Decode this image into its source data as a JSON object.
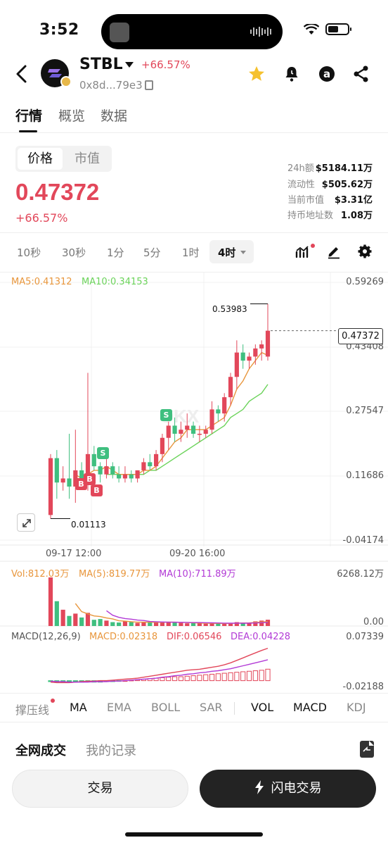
{
  "status_bar": {
    "time": "3:52"
  },
  "header": {
    "symbol": "STBL",
    "change": "+66.57%",
    "address": "0x8d...79e3"
  },
  "main_tabs": [
    {
      "label": "行情",
      "active": true
    },
    {
      "label": "概览",
      "active": false
    },
    {
      "label": "数据",
      "active": false
    }
  ],
  "price_panel": {
    "segments": [
      {
        "label": "价格",
        "active": true
      },
      {
        "label": "市值",
        "active": false
      }
    ],
    "price": "0.47372",
    "change": "+66.57%",
    "stats": [
      {
        "label": "24h额",
        "value": "$5184.11万"
      },
      {
        "label": "流动性",
        "value": "$505.62万"
      },
      {
        "label": "当前市值",
        "value": "$3.31亿"
      },
      {
        "label": "持币地址数",
        "value": "1.08万"
      }
    ]
  },
  "intervals": [
    "10秒",
    "30秒",
    "1分",
    "5分",
    "1时"
  ],
  "interval_selected": "4时",
  "chart_legend": {
    "ma5": "MA5:0.41312",
    "ma10": "MA10:0.34153"
  },
  "chart_axis": {
    "y_ticks": [
      "0.59269",
      "0.43408",
      "0.27547",
      "0.11686",
      "-0.04174"
    ],
    "x_ticks": [
      "09-17 12:00",
      "09-20 16:00"
    ],
    "current_price_tag": "0.47372",
    "high_label": "0.53983",
    "low_label": "0.01113"
  },
  "signals": [
    "S",
    "S",
    "B",
    "B",
    "B"
  ],
  "volume_panel": {
    "vol": "Vol:812.03万",
    "ma5": "MA(5):819.77万",
    "ma10": "MA(10):711.89万",
    "y_top": "6268.12万",
    "y_bottom": "0.00"
  },
  "macd_panel": {
    "title": "MACD(12,26,9)",
    "macd": "MACD:0.02318",
    "dif": "DIF:0.06546",
    "dea": "DEA:0.04228",
    "y_top": "0.07339",
    "y_bottom": "-0.02188"
  },
  "indicator_tabs": [
    "撑压线",
    "MA",
    "EMA",
    "BOLL",
    "SAR",
    "VOL",
    "MACD",
    "KDJ"
  ],
  "trade_tabs": [
    {
      "label": "全网成交",
      "active": true
    },
    {
      "label": "我的记录",
      "active": false
    }
  ],
  "buttons": {
    "trade": "交易",
    "flash_trade": "闪电交易"
  },
  "colors": {
    "up": "#e2475a",
    "down": "#3fbf7f",
    "ma5": "#e8963c",
    "ma10": "#6bd35a"
  },
  "chart_data": {
    "type": "candlestick",
    "interval": "4时",
    "ylim": [
      -0.04174,
      0.59269
    ],
    "y_ticks": [
      0.59269,
      0.43408,
      0.27547,
      0.11686,
      -0.04174
    ],
    "x_ticks": [
      "09-17 12:00",
      "09-20 16:00"
    ],
    "high": 0.53983,
    "low": 0.01113,
    "last": 0.47372,
    "candles": [
      {
        "o": 0.02,
        "h": 0.17,
        "l": 0.011,
        "c": 0.16
      },
      {
        "o": 0.16,
        "h": 0.18,
        "l": 0.06,
        "c": 0.1
      },
      {
        "o": 0.1,
        "h": 0.14,
        "l": 0.08,
        "c": 0.11
      },
      {
        "o": 0.11,
        "h": 0.22,
        "l": 0.06,
        "c": 0.09
      },
      {
        "o": 0.09,
        "h": 0.23,
        "l": 0.05,
        "c": 0.13
      },
      {
        "o": 0.13,
        "h": 0.15,
        "l": 0.1,
        "c": 0.11
      },
      {
        "o": 0.11,
        "h": 0.37,
        "l": 0.08,
        "c": 0.17
      },
      {
        "o": 0.17,
        "h": 0.19,
        "l": 0.13,
        "c": 0.14
      },
      {
        "o": 0.14,
        "h": 0.15,
        "l": 0.1,
        "c": 0.12
      },
      {
        "o": 0.12,
        "h": 0.16,
        "l": 0.11,
        "c": 0.14
      },
      {
        "o": 0.14,
        "h": 0.15,
        "l": 0.11,
        "c": 0.12
      },
      {
        "o": 0.12,
        "h": 0.14,
        "l": 0.1,
        "c": 0.11
      },
      {
        "o": 0.11,
        "h": 0.14,
        "l": 0.1,
        "c": 0.12
      },
      {
        "o": 0.12,
        "h": 0.13,
        "l": 0.1,
        "c": 0.11
      },
      {
        "o": 0.11,
        "h": 0.13,
        "l": 0.1,
        "c": 0.13
      },
      {
        "o": 0.13,
        "h": 0.16,
        "l": 0.12,
        "c": 0.15
      },
      {
        "o": 0.15,
        "h": 0.17,
        "l": 0.13,
        "c": 0.14
      },
      {
        "o": 0.14,
        "h": 0.18,
        "l": 0.13,
        "c": 0.17
      },
      {
        "o": 0.17,
        "h": 0.22,
        "l": 0.15,
        "c": 0.21
      },
      {
        "o": 0.21,
        "h": 0.25,
        "l": 0.18,
        "c": 0.24
      },
      {
        "o": 0.24,
        "h": 0.26,
        "l": 0.2,
        "c": 0.22
      },
      {
        "o": 0.22,
        "h": 0.25,
        "l": 0.2,
        "c": 0.23
      },
      {
        "o": 0.23,
        "h": 0.27,
        "l": 0.21,
        "c": 0.24
      },
      {
        "o": 0.24,
        "h": 0.25,
        "l": 0.21,
        "c": 0.22
      },
      {
        "o": 0.22,
        "h": 0.24,
        "l": 0.2,
        "c": 0.22
      },
      {
        "o": 0.22,
        "h": 0.24,
        "l": 0.21,
        "c": 0.23
      },
      {
        "o": 0.23,
        "h": 0.3,
        "l": 0.22,
        "c": 0.28
      },
      {
        "o": 0.28,
        "h": 0.29,
        "l": 0.25,
        "c": 0.27
      },
      {
        "o": 0.27,
        "h": 0.32,
        "l": 0.25,
        "c": 0.31
      },
      {
        "o": 0.31,
        "h": 0.37,
        "l": 0.29,
        "c": 0.36
      },
      {
        "o": 0.36,
        "h": 0.45,
        "l": 0.33,
        "c": 0.42
      },
      {
        "o": 0.42,
        "h": 0.44,
        "l": 0.38,
        "c": 0.4
      },
      {
        "o": 0.4,
        "h": 0.42,
        "l": 0.38,
        "c": 0.41
      },
      {
        "o": 0.41,
        "h": 0.44,
        "l": 0.39,
        "c": 0.43
      },
      {
        "o": 0.43,
        "h": 0.45,
        "l": 0.4,
        "c": 0.44
      },
      {
        "o": 0.41,
        "h": 0.53983,
        "l": 0.4,
        "c": 0.47372
      }
    ],
    "ma5": [
      null,
      null,
      null,
      null,
      0.12,
      0.11,
      0.12,
      0.13,
      0.13,
      0.14,
      0.13,
      0.12,
      0.12,
      0.12,
      0.12,
      0.13,
      0.13,
      0.14,
      0.16,
      0.18,
      0.2,
      0.21,
      0.23,
      0.23,
      0.23,
      0.23,
      0.24,
      0.25,
      0.26,
      0.29,
      0.33,
      0.35,
      0.38,
      0.4,
      0.42,
      0.41312
    ],
    "ma10": [
      null,
      null,
      null,
      null,
      null,
      null,
      null,
      null,
      null,
      0.12,
      0.12,
      0.12,
      0.12,
      0.12,
      0.12,
      0.12,
      0.13,
      0.13,
      0.14,
      0.15,
      0.16,
      0.17,
      0.18,
      0.19,
      0.2,
      0.21,
      0.22,
      0.23,
      0.24,
      0.26,
      0.27,
      0.28,
      0.3,
      0.31,
      0.32,
      0.34153
    ],
    "volume": [
      6268,
      3200,
      2100,
      1300,
      1600,
      1100,
      1700,
      800,
      900,
      700,
      500,
      450,
      600,
      500,
      400,
      500,
      450,
      500,
      550,
      500,
      450,
      400,
      350,
      380,
      350,
      300,
      350,
      300,
      320,
      400,
      500,
      420,
      350,
      600,
      700,
      812
    ],
    "macd_hist": [
      -0.002,
      -0.003,
      -0.004,
      -0.004,
      -0.003,
      -0.003,
      -0.002,
      -0.003,
      -0.003,
      -0.002,
      -0.002,
      -0.001,
      0.0,
      0.001,
      0.002,
      0.003,
      0.004,
      0.005,
      0.006,
      0.007,
      0.008,
      0.008,
      0.009,
      0.01,
      0.011,
      0.012,
      0.013,
      0.014,
      0.015,
      0.016,
      0.017,
      0.018,
      0.019,
      0.02,
      0.021,
      0.02318
    ],
    "dif": [
      -0.003,
      -0.004,
      -0.004,
      -0.004,
      -0.003,
      -0.002,
      -0.001,
      -0.001,
      0.0,
      0.0,
      0.001,
      0.002,
      0.003,
      0.004,
      0.005,
      0.007,
      0.009,
      0.011,
      0.013,
      0.015,
      0.017,
      0.019,
      0.021,
      0.022,
      0.023,
      0.025,
      0.027,
      0.029,
      0.032,
      0.036,
      0.041,
      0.046,
      0.051,
      0.056,
      0.061,
      0.06546
    ],
    "dea": [
      -0.001,
      -0.002,
      -0.002,
      -0.003,
      -0.003,
      -0.003,
      -0.003,
      -0.002,
      -0.002,
      -0.002,
      -0.001,
      -0.001,
      0.0,
      0.001,
      0.002,
      0.003,
      0.004,
      0.005,
      0.007,
      0.008,
      0.01,
      0.011,
      0.013,
      0.014,
      0.016,
      0.017,
      0.019,
      0.02,
      0.022,
      0.024,
      0.027,
      0.03,
      0.033,
      0.036,
      0.039,
      0.04228
    ],
    "volume_ylim": [
      0,
      6268.12
    ],
    "macd_ylim": [
      -0.02188,
      0.07339
    ]
  }
}
